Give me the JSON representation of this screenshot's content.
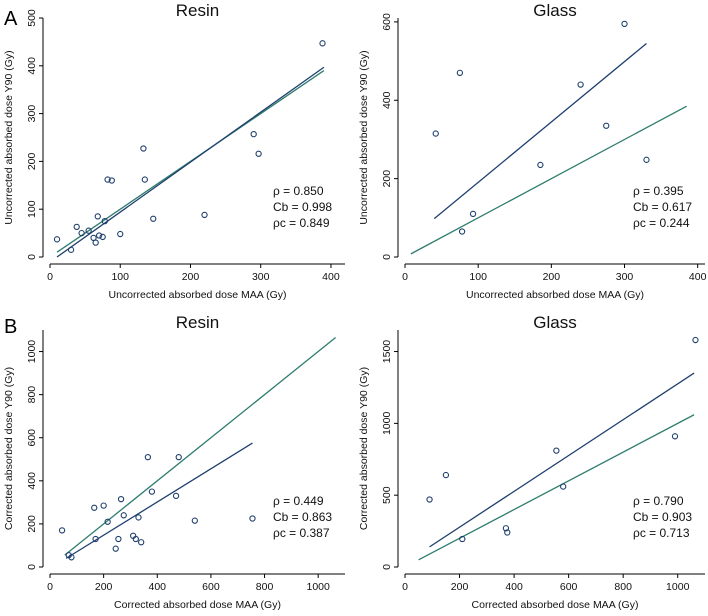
{
  "figure": {
    "panel_labels": [
      "A",
      "B"
    ]
  },
  "colors": {
    "identity_line": "#2e7d6e",
    "fit_line": "#1f3f6e",
    "points": "#1f3f6e",
    "axis": "#000000"
  },
  "chart_data": [
    {
      "type": "scatter",
      "title": "Resin",
      "xlabel": "Uncorrected absorbed dose MAA (Gy)",
      "ylabel": "Uncorrected absorbed dose Y90 (Gy)",
      "xlim": [
        0,
        420
      ],
      "ylim": [
        0,
        500
      ],
      "xticks": [
        0,
        100,
        200,
        300,
        400
      ],
      "yticks": [
        0,
        100,
        200,
        300,
        400,
        500
      ],
      "points": [
        [
          10,
          37
        ],
        [
          30,
          15
        ],
        [
          38,
          63
        ],
        [
          45,
          50
        ],
        [
          55,
          55
        ],
        [
          62,
          40
        ],
        [
          65,
          30
        ],
        [
          68,
          85
        ],
        [
          70,
          45
        ],
        [
          75,
          42
        ],
        [
          78,
          75
        ],
        [
          82,
          162
        ],
        [
          88,
          160
        ],
        [
          100,
          48
        ],
        [
          133,
          227
        ],
        [
          135,
          162
        ],
        [
          147,
          80
        ],
        [
          220,
          88
        ],
        [
          290,
          257
        ],
        [
          297,
          216
        ],
        [
          388,
          447
        ]
      ],
      "fit_line": [
        [
          10,
          0
        ],
        [
          390,
          397
        ]
      ],
      "identity_line": [
        [
          10,
          10
        ],
        [
          390,
          390
        ]
      ],
      "stats": [
        "ρ = 0.850",
        "Cb = 0.998",
        "ρc = 0.849"
      ]
    },
    {
      "type": "scatter",
      "title": "Glass",
      "xlabel": "Uncorrected absorbed dose MAA (Gy)",
      "ylabel": "Uncorrected absorbed dose Y90 (Gy)",
      "xlim": [
        0,
        410
      ],
      "ylim": [
        0,
        610
      ],
      "xticks": [
        0,
        100,
        200,
        300,
        400
      ],
      "yticks": [
        0,
        200,
        400,
        600
      ],
      "points": [
        [
          42,
          315
        ],
        [
          75,
          470
        ],
        [
          78,
          65
        ],
        [
          93,
          110
        ],
        [
          185,
          235
        ],
        [
          240,
          440
        ],
        [
          275,
          335
        ],
        [
          300,
          595
        ],
        [
          330,
          248
        ]
      ],
      "fit_line": [
        [
          40,
          98
        ],
        [
          330,
          545
        ]
      ],
      "identity_line": [
        [
          8,
          8
        ],
        [
          385,
          385
        ]
      ],
      "stats": [
        "ρ = 0.395",
        "Cb = 0.617",
        "ρc = 0.244"
      ]
    },
    {
      "type": "scatter",
      "title": "Resin",
      "xlabel": "Corrected absorbed dose MAA (Gy)",
      "ylabel": "Corrected absorbed dose Y90 (Gy)",
      "xlim": [
        0,
        1100
      ],
      "ylim": [
        0,
        1100
      ],
      "xticks": [
        0,
        200,
        400,
        600,
        800,
        1000
      ],
      "yticks": [
        0,
        200,
        400,
        600,
        800,
        1000
      ],
      "points": [
        [
          45,
          170
        ],
        [
          70,
          55
        ],
        [
          80,
          45
        ],
        [
          165,
          275
        ],
        [
          170,
          130
        ],
        [
          200,
          285
        ],
        [
          215,
          210
        ],
        [
          245,
          85
        ],
        [
          255,
          130
        ],
        [
          265,
          315
        ],
        [
          275,
          240
        ],
        [
          310,
          145
        ],
        [
          320,
          130
        ],
        [
          330,
          230
        ],
        [
          340,
          115
        ],
        [
          365,
          510
        ],
        [
          380,
          350
        ],
        [
          470,
          330
        ],
        [
          480,
          510
        ],
        [
          540,
          215
        ],
        [
          755,
          225
        ]
      ],
      "fit_line": [
        [
          60,
          40
        ],
        [
          755,
          575
        ]
      ],
      "identity_line": [
        [
          55,
          55
        ],
        [
          1065,
          1065
        ]
      ],
      "stats": [
        "ρ = 0.449",
        "Cb = 0.863",
        "ρc = 0.387"
      ]
    },
    {
      "type": "scatter",
      "title": "Glass",
      "xlabel": "Corrected absorbed dose MAA (Gy)",
      "ylabel": "Corrected absorbed dose Y90 (Gy)",
      "xlim": [
        0,
        1100
      ],
      "ylim": [
        0,
        1650
      ],
      "xticks": [
        0,
        200,
        400,
        600,
        800,
        1000
      ],
      "yticks": [
        0,
        500,
        1000,
        1500
      ],
      "points": [
        [
          90,
          470
        ],
        [
          150,
          640
        ],
        [
          210,
          195
        ],
        [
          370,
          270
        ],
        [
          375,
          240
        ],
        [
          555,
          810
        ],
        [
          580,
          560
        ],
        [
          990,
          910
        ],
        [
          1065,
          1580
        ]
      ],
      "fit_line": [
        [
          90,
          140
        ],
        [
          1060,
          1350
        ]
      ],
      "identity_line": [
        [
          50,
          50
        ],
        [
          1060,
          1060
        ]
      ],
      "stats": [
        "ρ = 0.790",
        "Cb = 0.903",
        "ρc = 0.713"
      ]
    }
  ]
}
